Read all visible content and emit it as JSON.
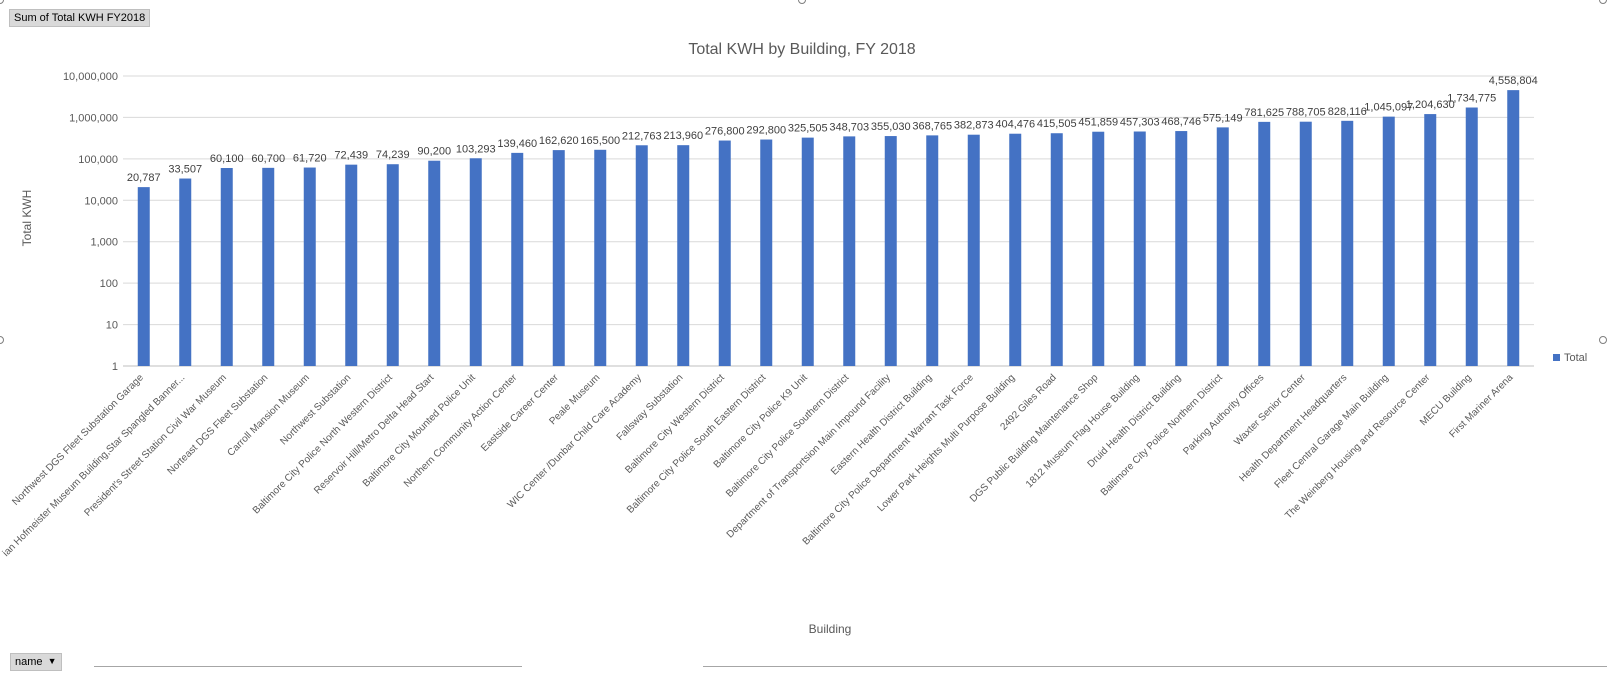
{
  "pivot": {
    "value_field_button": "Sum of Total KWH FY2018",
    "axis_field_button": "name"
  },
  "chart_data": {
    "type": "bar",
    "title": "Total KWH by Building, FY 2018",
    "xlabel": "Building",
    "ylabel": "Total KWH",
    "y_scale": "log",
    "ylim": [
      1,
      10000000
    ],
    "y_ticks": [
      1,
      10,
      100,
      1000,
      10000,
      100000,
      1000000,
      10000000
    ],
    "y_tick_labels": [
      "1",
      "10",
      "100",
      "1,000",
      "10,000",
      "100,000",
      "1,000,000",
      "10,000,000"
    ],
    "grid": true,
    "legend": "right",
    "bar_color": "#4472c4",
    "categories": [
      "Northwest DGS Fleet Substation Garage",
      "ian Hofmeister Museum Building,Star Spangled Banner...",
      "President's Street Station Civil War Museum",
      "Norteast DGS Fleet Substation",
      "Carroll Mansion Museum",
      "Northwest Substation",
      "Baltimore City Police North Western District",
      "Reservoir Hill/Metro Delta Head Start",
      "Baltimore City Mounted Police Unit",
      "Northern Community Action Center",
      "Eastside Career Center",
      "Peale Museum",
      "WIC Center /Dunbar Child Care Academy",
      "Fallsway Substation",
      "Baltimore City Western District",
      "Baltimore City Police South Eastern District",
      "Baltimore City Police K9 Unit",
      "Baltimore City Police Southern District",
      "Department of Transportsion Main Impound Facility",
      "Eastern Health District Building",
      "Baltimore City Police Department Warrant Task Force",
      "Lower Park Heights Multi Purpose Building",
      "2492 Giles Road",
      "DGS Public Building Maintenance Shop",
      "1812 Museum Flag House Building",
      "Druid Health District Building",
      "Baltimore City Police Northern District",
      "Parking Authority Offices",
      "Waxter Senior Center",
      "Health Department Headquarters",
      "Fleet Central Garage Main Building",
      "The Weinberg Housing and Resource Center",
      "MECU Building",
      "First Mariner Arena"
    ],
    "series": [
      {
        "name": "Total",
        "values": [
          20787,
          33507,
          60100,
          60700,
          61720,
          72439,
          74239,
          90200,
          103293,
          139460,
          162620,
          165500,
          212763,
          213960,
          276800,
          292800,
          325505,
          348703,
          355030,
          368765,
          382873,
          404476,
          415505,
          451859,
          457303,
          468746,
          575149,
          781625,
          788705,
          828116,
          1045097,
          1204630,
          1734775,
          4558804
        ],
        "labels": [
          "20,787",
          "33,507",
          "60,100",
          "60,700",
          "61,720",
          "72,439",
          "74,239",
          "90,200",
          "103,293",
          "139,460",
          "162,620",
          "165,500",
          "212,763",
          "213,960",
          "276,800",
          "292,800",
          "325,505",
          "348,703",
          "355,030",
          "368,765",
          "382,873",
          "404,476",
          "415,505",
          "451,859",
          "457,303",
          "468,746",
          "575,149",
          "781,625",
          "788,705",
          "828,116",
          "1,045,097",
          "1,204,630",
          "1,734,775",
          "4,558,804"
        ]
      }
    ]
  }
}
